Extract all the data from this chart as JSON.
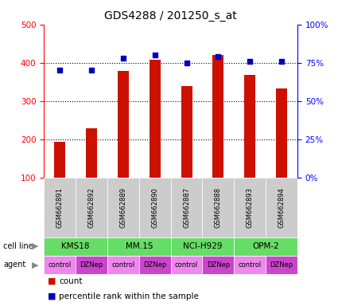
{
  "title": "GDS4288 / 201250_s_at",
  "samples": [
    "GSM662891",
    "GSM662892",
    "GSM662889",
    "GSM662890",
    "GSM662887",
    "GSM662888",
    "GSM662893",
    "GSM662894"
  ],
  "counts": [
    193,
    228,
    378,
    408,
    338,
    420,
    368,
    333
  ],
  "percentiles": [
    70,
    70,
    78,
    80,
    75,
    79,
    76,
    76
  ],
  "cell_lines": [
    {
      "name": "KMS18",
      "span": [
        0,
        2
      ],
      "color": "#66dd66"
    },
    {
      "name": "MM.1S",
      "span": [
        2,
        4
      ],
      "color": "#66dd66"
    },
    {
      "name": "NCI-H929",
      "span": [
        4,
        6
      ],
      "color": "#66dd66"
    },
    {
      "name": "OPM-2",
      "span": [
        6,
        8
      ],
      "color": "#66dd66"
    }
  ],
  "agents": [
    "control",
    "DZNep",
    "control",
    "DZNep",
    "control",
    "DZNep",
    "control",
    "DZNep"
  ],
  "agent_color_light": "#ee88ee",
  "agent_color_dark": "#cc44cc",
  "bar_color": "#cc1100",
  "dot_color": "#0000bb",
  "ylim_left": [
    100,
    500
  ],
  "ylim_right": [
    0,
    100
  ],
  "yticks_left": [
    100,
    200,
    300,
    400,
    500
  ],
  "yticks_right": [
    0,
    25,
    50,
    75,
    100
  ],
  "ytick_labels_right": [
    "0%",
    "25%",
    "50%",
    "75%",
    "100%"
  ],
  "sample_box_color": "#cccccc",
  "bar_width": 0.35
}
